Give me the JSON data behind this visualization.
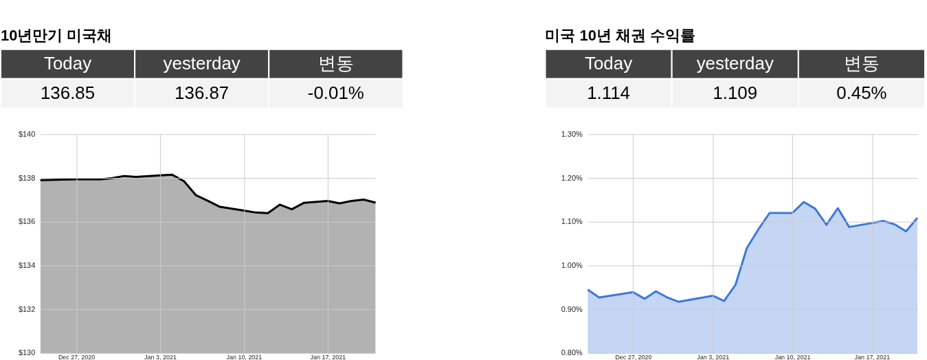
{
  "chart_data": [
    {
      "type": "area",
      "title": "10년만기 미국채",
      "annotations": [
        "Today",
        "yesterday",
        "변동",
        "136.85",
        "136.87",
        "-0.01%"
      ],
      "x": [
        "2020-12-24",
        "2020-12-27",
        "2020-12-29",
        "2020-12-30",
        "2020-12-31",
        "2021-01-01",
        "2021-01-03",
        "2021-01-04",
        "2021-01-05",
        "2021-01-06",
        "2021-01-07",
        "2021-01-08",
        "2021-01-10",
        "2021-01-11",
        "2021-01-12",
        "2021-01-13",
        "2021-01-14",
        "2021-01-15",
        "2021-01-17",
        "2021-01-18",
        "2021-01-19",
        "2021-01-20",
        "2021-01-21"
      ],
      "series": [
        {
          "color": "#000000",
          "values": [
            137.9,
            137.94,
            137.94,
            137.99,
            138.09,
            138.05,
            138.12,
            138.15,
            137.85,
            137.21,
            136.95,
            136.68,
            136.51,
            136.42,
            136.39,
            136.78,
            136.57,
            136.86,
            136.95,
            136.84,
            136.95,
            137.01,
            136.87
          ]
        }
      ],
      "xlim": [
        "2020-12-24",
        "2021-01-21"
      ],
      "xticks": [
        {
          "value": "2020-12-27",
          "label": "Dec 27, 2020"
        },
        {
          "value": "2021-01-03",
          "label": "Jan 3, 2021"
        },
        {
          "value": "2021-01-10",
          "label": "Jan 10, 2021"
        },
        {
          "value": "2021-01-17",
          "label": "Jan 17, 2021"
        }
      ],
      "ylim": [
        130,
        140
      ],
      "yticks": [
        {
          "value": 130,
          "label": "$130"
        },
        {
          "value": 132,
          "label": "$132"
        },
        {
          "value": 134,
          "label": "$134"
        },
        {
          "value": 136,
          "label": "$136"
        },
        {
          "value": 138,
          "label": "$138"
        },
        {
          "value": 140,
          "label": "$140"
        }
      ],
      "grid": true
    },
    {
      "type": "area",
      "title": "미국 10년 채권 수익률",
      "annotations": [
        "Today",
        "yesterday",
        "변동",
        "1.114",
        "1.109",
        "0.45%"
      ],
      "x": [
        "2020-12-23",
        "2020-12-24",
        "2020-12-27",
        "2020-12-28",
        "2020-12-29",
        "2020-12-30",
        "2020-12-31",
        "2021-01-03",
        "2021-01-04",
        "2021-01-05",
        "2021-01-06",
        "2021-01-07",
        "2021-01-08",
        "2021-01-10",
        "2021-01-11",
        "2021-01-12",
        "2021-01-13",
        "2021-01-14",
        "2021-01-15",
        "2021-01-17",
        "2021-01-18",
        "2021-01-19",
        "2021-01-20",
        "2021-01-21"
      ],
      "series": [
        {
          "color": "#3c78d8",
          "values": [
            0.945,
            0.927,
            0.939,
            0.924,
            0.941,
            0.927,
            0.917,
            0.931,
            0.919,
            0.956,
            1.04,
            1.082,
            1.12,
            1.12,
            1.145,
            1.13,
            1.093,
            1.131,
            1.088,
            1.097,
            1.102,
            1.094,
            1.078,
            1.109
          ]
        }
      ],
      "xlim": [
        "2020-12-23",
        "2021-01-21"
      ],
      "xticks": [
        {
          "value": "2020-12-27",
          "label": "Dec 27, 2020"
        },
        {
          "value": "2021-01-03",
          "label": "Jan 3, 2021"
        },
        {
          "value": "2021-01-10",
          "label": "Jan 10, 2021"
        },
        {
          "value": "2021-01-17",
          "label": "Jan 17, 2021"
        }
      ],
      "ylim": [
        0.8,
        1.3
      ],
      "yticks": [
        {
          "value": 0.8,
          "label": "0.80%"
        },
        {
          "value": 0.9,
          "label": "0.90%"
        },
        {
          "value": 1.0,
          "label": "1.00%"
        },
        {
          "value": 1.1,
          "label": "1.10%"
        },
        {
          "value": 1.2,
          "label": "1.20%"
        },
        {
          "value": 1.3,
          "label": "1.30%"
        }
      ],
      "grid": true
    }
  ]
}
